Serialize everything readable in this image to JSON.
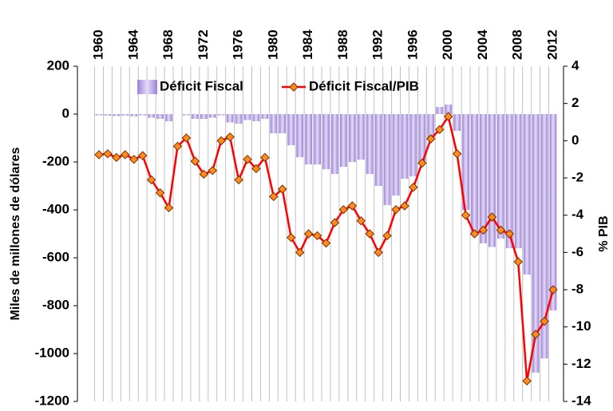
{
  "chart_data": {
    "type": "bar-line",
    "categories": [
      "1960",
      "1961",
      "1962",
      "1963",
      "1964",
      "1965",
      "1966",
      "1967",
      "1968",
      "1969",
      "1970",
      "1971",
      "1972",
      "1973",
      "1974",
      "1975",
      "1976",
      "1977",
      "1978",
      "1979",
      "1980",
      "1981",
      "1982",
      "1983",
      "1984",
      "1985",
      "1986",
      "1987",
      "1988",
      "1989",
      "1990",
      "1991",
      "1992",
      "1993",
      "1994",
      "1995",
      "1996",
      "1997",
      "1998",
      "1999",
      "2000",
      "2001",
      "2002",
      "2003",
      "2004",
      "2005",
      "2006",
      "2007",
      "2008",
      "2009",
      "2010",
      "2011",
      "2012"
    ],
    "series": [
      {
        "name": "Déficit Fiscal",
        "color": "#9b7fd9",
        "axis": "y",
        "values": [
          -5,
          -6,
          -8,
          -6,
          -9,
          -5,
          -15,
          -20,
          -30,
          0,
          -5,
          -20,
          -20,
          -15,
          -5,
          -35,
          -40,
          -25,
          -30,
          -20,
          -80,
          -80,
          -130,
          -180,
          -210,
          -210,
          -230,
          -250,
          -220,
          -200,
          -190,
          -250,
          -300,
          -380,
          -340,
          -270,
          -260,
          -200,
          -100,
          30,
          40,
          -70,
          -400,
          -500,
          -540,
          -555,
          -520,
          -560,
          -560,
          -670,
          -1080,
          -1020,
          -820
        ]
      },
      {
        "name": "Déficit Fiscal/PIB",
        "color": "#ff0000",
        "axis": "y2",
        "values": [
          -0.75,
          -0.7,
          -0.9,
          -0.75,
          -1.0,
          -0.8,
          -2.1,
          -2.8,
          -3.6,
          -0.3,
          0.15,
          -1.1,
          -1.8,
          -1.6,
          0,
          0.2,
          -2.1,
          -1.0,
          -1.5,
          -0.9,
          -3.0,
          -2.6,
          -5.2,
          -6.0,
          -5.0,
          -5.1,
          -5.5,
          -4.4,
          -3.7,
          -3.5,
          -4.3,
          -5.0,
          -6.0,
          -5.1,
          -3.7,
          -3.5,
          -2.5,
          -1.2,
          0.1,
          0.6,
          1.3,
          -0.7,
          -4.0,
          -5.0,
          -4.8,
          -4.1,
          -4.8,
          -5.0,
          -6.5,
          -12.9,
          -10.4,
          -9.7,
          -8.0
        ]
      }
    ],
    "ylabel": "Miles de millones de dólares",
    "y2label": "% PIB",
    "ylim": [
      -1200,
      200
    ],
    "yticks": [
      -1200,
      -1000,
      -800,
      -600,
      -400,
      -200,
      0,
      200
    ],
    "y2lim": [
      -14,
      4
    ],
    "y2ticks": [
      -14,
      -12,
      -10,
      -8,
      -6,
      -4,
      -2,
      0,
      2,
      4
    ],
    "legend": "top-left",
    "grid": true
  }
}
